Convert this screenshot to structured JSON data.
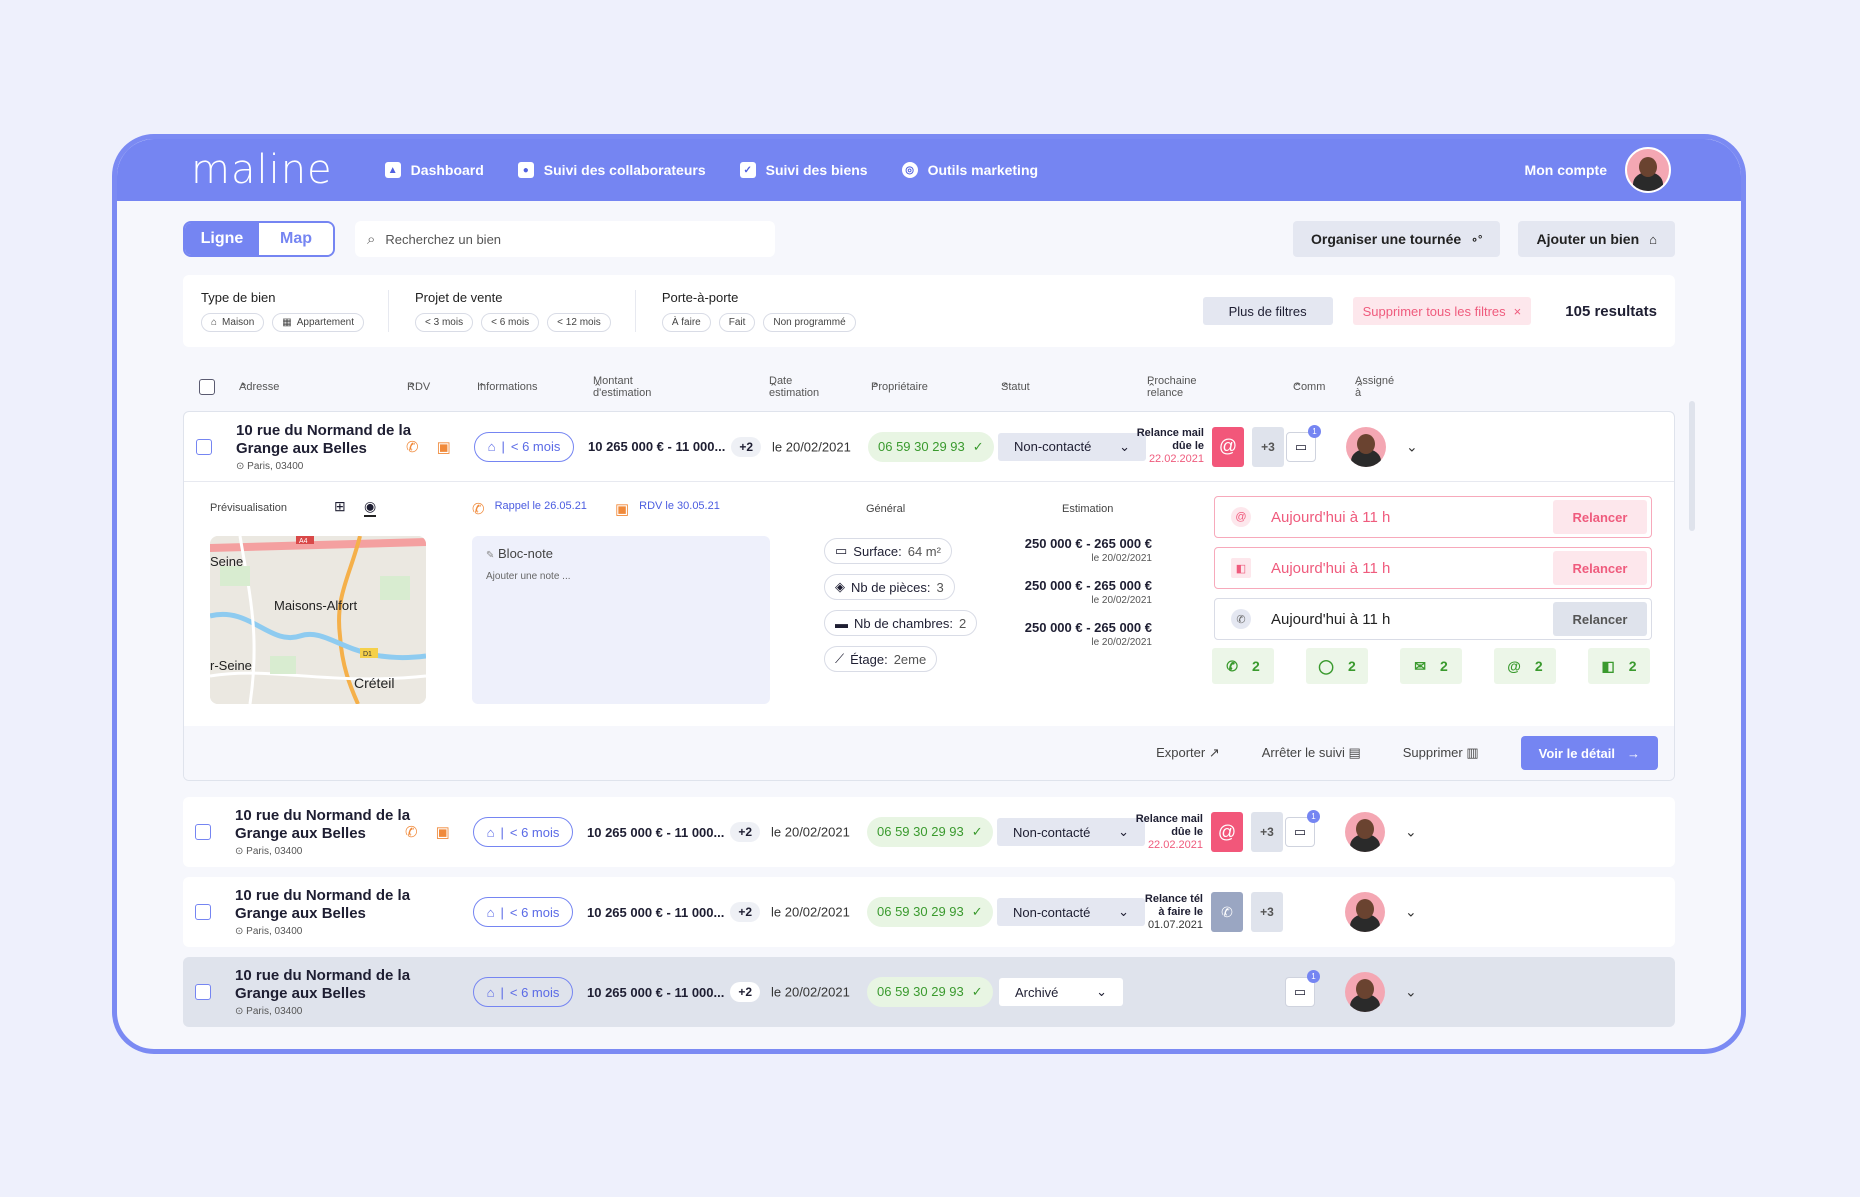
{
  "app": {
    "logo": "maline"
  },
  "nav": [
    {
      "label": "Dashboard",
      "icon": "chart-icon"
    },
    {
      "label": "Suivi des collaborateurs",
      "icon": "user-icon"
    },
    {
      "label": "Suivi des biens",
      "icon": "checklist-icon"
    },
    {
      "label": "Outils marketing",
      "icon": "target-icon"
    }
  ],
  "account": {
    "label": "Mon compte"
  },
  "toolbar": {
    "view_line": "Ligne",
    "view_map": "Map",
    "search_placeholder": "Recherchez un bien",
    "tour_button": "Organiser une tournée",
    "add_button": "Ajouter un bien"
  },
  "filters": {
    "type": {
      "title": "Type de bien",
      "chips": [
        "Maison",
        "Appartement"
      ]
    },
    "project": {
      "title": "Projet de vente",
      "chips": [
        "< 3 mois",
        "< 6 mois",
        "< 12 mois"
      ]
    },
    "door": {
      "title": "Porte-à-porte",
      "chips": [
        "À faire",
        "Fait",
        "Non programmé"
      ]
    },
    "more": "Plus de filtres",
    "clear": "Supprimer tous les filtres",
    "results": "105 resultats"
  },
  "columns": [
    "Adresse",
    "RDV",
    "Informations",
    "Montant d'estimation",
    "Date estimation",
    "Propriétaire",
    "Statut",
    "Prochaine relance",
    "Comm",
    "Assigné à"
  ],
  "rows": [
    {
      "addr1": "10 rue du Normand de la",
      "addr2": "Grange aux Belles",
      "city": "Paris, 03400",
      "info": "< 6 mois",
      "amount": "10 265 000 € - 11 000...",
      "more": "+2",
      "date": "le 20/02/2021",
      "phone": "06 59 30 29 93",
      "status": "Non-contacté",
      "relance_title": "Relance mail",
      "relance_sub": "dûe le",
      "relance_date": "22.02.2021",
      "relance_more": "+3",
      "comm_badge": "1"
    },
    {
      "addr1": "10 rue du Normand de la",
      "addr2": "Grange aux Belles",
      "city": "Paris, 03400",
      "info": "< 6 mois",
      "amount": "10 265 000 € - 11 000...",
      "more": "+2",
      "date": "le 20/02/2021",
      "phone": "06 59 30 29 93",
      "status": "Non-contacté",
      "relance_title": "Relance mail",
      "relance_sub": "dûe le",
      "relance_date": "22.02.2021",
      "relance_more": "+3",
      "comm_badge": "1"
    },
    {
      "addr1": "10 rue du Normand de la",
      "addr2": "Grange aux Belles",
      "city": "Paris, 03400",
      "info": "< 6 mois",
      "amount": "10 265 000 € - 11 000...",
      "more": "+2",
      "date": "le 20/02/2021",
      "phone": "06 59 30 29 93",
      "status": "Non-contacté",
      "relance_title": "Relance tél",
      "relance_sub": "à faire le",
      "relance_date": "01.07.2021",
      "relance_more": "+3"
    },
    {
      "addr1": "10 rue du Normand de la",
      "addr2": "Grange aux Belles",
      "city": "Paris, 03400",
      "info": "< 6 mois",
      "amount": "10 265 000 € - 11 000...",
      "more": "+2",
      "date": "le 20/02/2021",
      "phone": "06 59 30 29 93",
      "status": "Archivé",
      "comm_badge": "1"
    }
  ],
  "detail": {
    "preview": "Prévisualisation",
    "rappel": "Rappel le 26.05.21",
    "rdv": "RDV le 30.05.21",
    "note_title": "Bloc-note",
    "note_placeholder": "Ajouter une note ...",
    "general_title": "Général",
    "general": [
      {
        "label": "Surface:",
        "value": "64 m²"
      },
      {
        "label": "Nb de pièces:",
        "value": "3"
      },
      {
        "label": "Nb de chambres:",
        "value": "2"
      },
      {
        "label": "Étage:",
        "value": "2eme"
      }
    ],
    "estimation_title": "Estimation",
    "estimations": [
      {
        "value": "250 000 € - 265 000 €",
        "date": "le 20/02/2021"
      },
      {
        "value": "250 000 € - 265 000 €",
        "date": "le 20/02/2021"
      },
      {
        "value": "250 000 € - 265 000 €",
        "date": "le 20/02/2021"
      }
    ],
    "relances": [
      {
        "text": "Aujourd'hui à 11 h",
        "button": "Relancer",
        "kind": "mail"
      },
      {
        "text": "Aujourd'hui à 11 h",
        "button": "Relancer",
        "kind": "mailbox"
      },
      {
        "text": "Aujourd'hui à 11 h",
        "button": "Relancer",
        "kind": "phone"
      }
    ],
    "counters": [
      {
        "icon": "phone-icon",
        "count": "2"
      },
      {
        "icon": "chat-icon",
        "count": "2"
      },
      {
        "icon": "envelope-icon",
        "count": "2"
      },
      {
        "icon": "at-icon",
        "count": "2"
      },
      {
        "icon": "mailbox-icon",
        "count": "2"
      }
    ],
    "map_labels": [
      "Seine",
      "Maisons-Alfort",
      "r-Seine",
      "Créteil",
      "A4",
      "D1"
    ],
    "actions": {
      "export": "Exporter",
      "stop": "Arrêter le suivi",
      "delete": "Supprimer",
      "detail": "Voir le détail"
    }
  },
  "colors": {
    "accent": "#7585f2",
    "alert": "#f2577a",
    "success": "#3a9a2e"
  }
}
